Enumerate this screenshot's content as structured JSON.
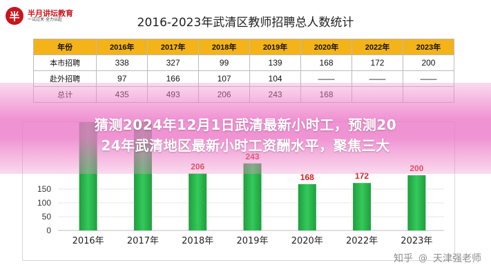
{
  "brand": {
    "name": "半月讲坛教育",
    "tagline": "一试过关·全力以赴"
  },
  "table": {
    "title": "2016-2023年武清区教师招聘总人数统计",
    "headers": [
      "年份",
      "2016年",
      "2017年",
      "2018年",
      "2019年",
      "2020年",
      "2022年",
      "2023年"
    ],
    "rows": [
      {
        "label": "本市招聘",
        "cells": [
          "338",
          "327",
          "99",
          "139",
          "168",
          "172",
          "200"
        ]
      },
      {
        "label": "赴外招聘",
        "cells": [
          "97",
          "166",
          "107",
          "104",
          "——",
          "——",
          "——"
        ]
      },
      {
        "label": "总计",
        "cells": [
          "435",
          "493",
          "206",
          "243",
          "168",
          "",
          ""
        ]
      }
    ]
  },
  "headline": {
    "line1": "猜测2024年12月1日武清最新小时工，预测20",
    "line2": "24年武清地区最新小时工资酬水平，聚焦三大"
  },
  "chart_data": {
    "type": "bar",
    "categories": [
      "2016年",
      "2017年",
      "2018年",
      "2019年",
      "2020年",
      "2022年",
      "2023年"
    ],
    "values": [
      435,
      493,
      206,
      243,
      168,
      172,
      200
    ],
    "data_labels_visible": [
      "",
      "",
      "206",
      "243",
      "168",
      "172",
      "200"
    ],
    "yticks": [
      "0",
      "50",
      "100",
      "150"
    ],
    "ylim": [
      0,
      500
    ],
    "bar_color": "#27b24a",
    "label_color": "#d6201b"
  },
  "watermark": {
    "site": "知乎",
    "at": "@",
    "author": "天津强老师"
  }
}
